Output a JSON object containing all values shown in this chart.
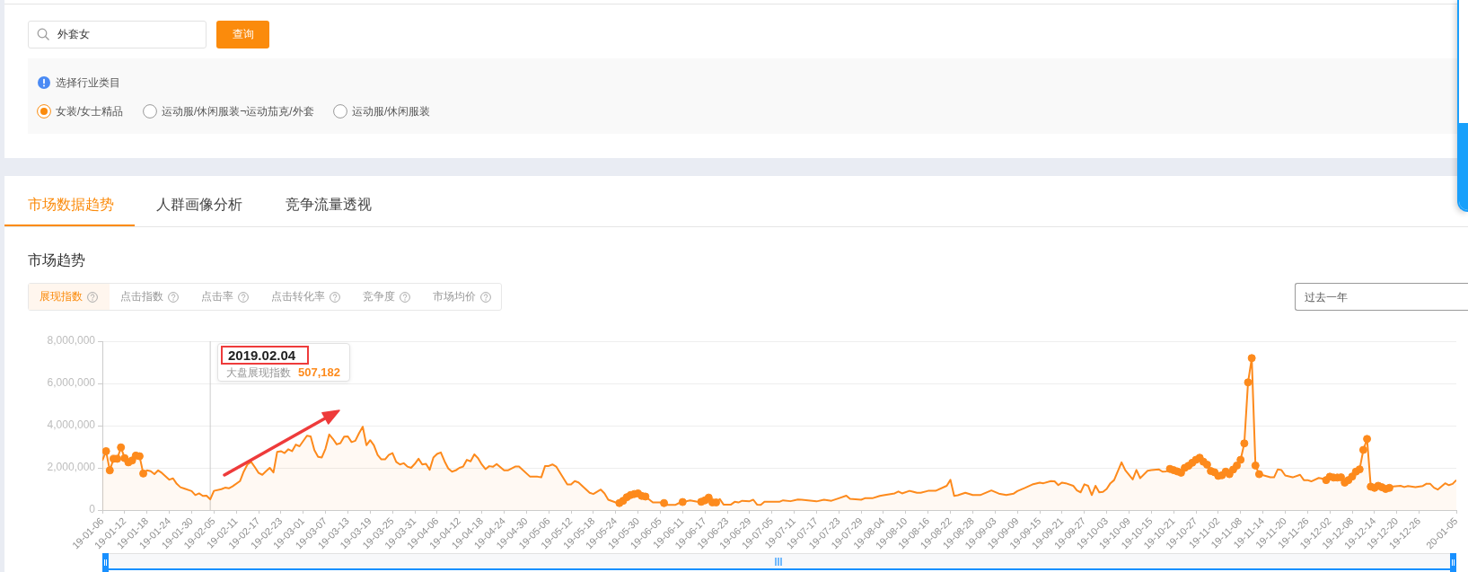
{
  "chart_data": {
    "type": "area",
    "title": "市场趋势",
    "annotations": [
      "外套女",
      "查询",
      "选择行业类目",
      "女装/女士精品",
      "运动服/休闲服装¬运动茄克/外套",
      "运动服/休闲服装",
      "市场数据趋势",
      "人群画像分析",
      "竞争流量透视",
      "展现指数",
      "点击指数",
      "点击率",
      "点击转化率",
      "竞争度",
      "市场均价",
      "过去一年",
      "2019.02.04",
      "大盘展现指数",
      "507,182"
    ],
    "xlim": [
      "2019-01-06",
      "2020-01-05"
    ],
    "xticks": [
      {
        "value": "2019-01-06",
        "label": "19-01-06"
      },
      {
        "value": "2019-01-12",
        "label": "19-01-12"
      },
      {
        "value": "2019-01-18",
        "label": "19-01-18"
      },
      {
        "value": "2019-01-24",
        "label": "19-01-24"
      },
      {
        "value": "2019-01-30",
        "label": "19-01-30"
      },
      {
        "value": "2019-02-05",
        "label": "19-02-05"
      },
      {
        "value": "2019-02-11",
        "label": "19-02-11"
      },
      {
        "value": "2019-02-17",
        "label": "19-02-17"
      },
      {
        "value": "2019-02-23",
        "label": "19-02-23"
      },
      {
        "value": "2019-03-01",
        "label": "19-03-01"
      },
      {
        "value": "2019-03-07",
        "label": "19-03-07"
      },
      {
        "value": "2019-03-13",
        "label": "19-03-13"
      },
      {
        "value": "2019-03-19",
        "label": "19-03-19"
      },
      {
        "value": "2019-03-25",
        "label": "19-03-25"
      },
      {
        "value": "2019-03-31",
        "label": "19-03-31"
      },
      {
        "value": "2019-04-06",
        "label": "19-04-06"
      },
      {
        "value": "2019-04-12",
        "label": "19-04-12"
      },
      {
        "value": "2019-04-18",
        "label": "19-04-18"
      },
      {
        "value": "2019-04-24",
        "label": "19-04-24"
      },
      {
        "value": "2019-04-30",
        "label": "19-04-30"
      },
      {
        "value": "2019-05-06",
        "label": "19-05-06"
      },
      {
        "value": "2019-05-12",
        "label": "19-05-12"
      },
      {
        "value": "2019-05-18",
        "label": "19-05-18"
      },
      {
        "value": "2019-05-24",
        "label": "19-05-24"
      },
      {
        "value": "2019-05-30",
        "label": "19-05-30"
      },
      {
        "value": "2019-06-05",
        "label": "19-06-05"
      },
      {
        "value": "2019-06-11",
        "label": "19-06-11"
      },
      {
        "value": "2019-06-17",
        "label": "19-06-17"
      },
      {
        "value": "2019-06-23",
        "label": "19-06-23"
      },
      {
        "value": "2019-06-29",
        "label": "19-06-29"
      },
      {
        "value": "2019-07-05",
        "label": "19-07-05"
      },
      {
        "value": "2019-07-11",
        "label": "19-07-11"
      },
      {
        "value": "2019-07-17",
        "label": "19-07-17"
      },
      {
        "value": "2019-07-23",
        "label": "19-07-23"
      },
      {
        "value": "2019-07-29",
        "label": "19-07-29"
      },
      {
        "value": "2019-08-04",
        "label": "19-08-04"
      },
      {
        "value": "2019-08-10",
        "label": "19-08-10"
      },
      {
        "value": "2019-08-16",
        "label": "19-08-16"
      },
      {
        "value": "2019-08-22",
        "label": "19-08-22"
      },
      {
        "value": "2019-08-28",
        "label": "19-08-28"
      },
      {
        "value": "2019-09-03",
        "label": "19-09-03"
      },
      {
        "value": "2019-09-09",
        "label": "19-09-09"
      },
      {
        "value": "2019-09-15",
        "label": "19-09-15"
      },
      {
        "value": "2019-09-21",
        "label": "19-09-21"
      },
      {
        "value": "2019-09-27",
        "label": "19-09-27"
      },
      {
        "value": "2019-10-03",
        "label": "19-10-03"
      },
      {
        "value": "2019-10-09",
        "label": "19-10-09"
      },
      {
        "value": "2019-10-15",
        "label": "19-10-15"
      },
      {
        "value": "2019-10-21",
        "label": "19-10-21"
      },
      {
        "value": "2019-10-27",
        "label": "19-10-27"
      },
      {
        "value": "2019-11-02",
        "label": "19-11-02"
      },
      {
        "value": "2019-11-08",
        "label": "19-11-08"
      },
      {
        "value": "2019-11-14",
        "label": "19-11-14"
      },
      {
        "value": "2019-11-20",
        "label": "19-11-20"
      },
      {
        "value": "2019-11-26",
        "label": "19-11-26"
      },
      {
        "value": "2019-12-02",
        "label": "19-12-02"
      },
      {
        "value": "2019-12-08",
        "label": "19-12-08"
      },
      {
        "value": "2019-12-14",
        "label": "19-12-14"
      },
      {
        "value": "2019-12-20",
        "label": "19-12-20"
      },
      {
        "value": "2019-12-26",
        "label": "19-12-26"
      },
      {
        "value": "2020-01-05",
        "label": "20-01-05"
      }
    ],
    "ylim": [
      0,
      8000000
    ],
    "yticks": [
      0,
      {
        "value": 2000000,
        "label": "2,000,000"
      },
      {
        "value": 4000000,
        "label": "4,000,000"
      },
      {
        "value": 6000000,
        "label": "6,000,000"
      },
      {
        "value": 8000000,
        "label": "8,000,000"
      }
    ],
    "grid": "y",
    "ref_lines": [
      {
        "axis": "x",
        "value": "2019-02-04",
        "color": "#cccccc"
      }
    ],
    "series": [
      {
        "color": "#fd8a1c",
        "x": [
          "2019-01-06",
          "2019-01-07",
          "2019-01-08",
          "2019-01-09",
          "2019-01-10",
          "2019-01-11",
          "2019-01-12",
          "2019-01-13",
          "2019-01-14",
          "2019-01-15",
          "2019-01-16",
          "2019-01-17",
          "2019-01-18",
          "2019-01-19",
          "2019-01-20",
          "2019-01-21",
          "2019-01-22",
          "2019-01-24",
          "2019-01-25",
          "2019-01-26",
          "2019-01-27",
          "2019-01-28",
          "2019-01-30",
          "2019-01-31",
          "2019-02-01",
          "2019-02-02",
          "2019-02-03",
          "2019-02-04",
          "2019-02-05",
          "2019-02-07",
          "2019-02-08",
          "2019-02-09",
          "2019-02-10",
          "2019-02-12",
          "2019-02-13",
          "2019-02-14",
          "2019-02-15",
          "2019-02-16",
          "2019-02-17",
          "2019-02-18",
          "2019-02-19",
          "2019-02-20",
          "2019-02-21",
          "2019-02-22",
          "2019-02-23",
          "2019-02-24",
          "2019-02-25",
          "2019-02-26",
          "2019-02-27",
          "2019-02-28",
          "2019-03-02",
          "2019-03-03",
          "2019-03-04",
          "2019-03-05",
          "2019-03-06",
          "2019-03-07",
          "2019-03-08",
          "2019-03-09",
          "2019-03-10",
          "2019-03-11",
          "2019-03-12",
          "2019-03-13",
          "2019-03-14",
          "2019-03-15",
          "2019-03-16",
          "2019-03-17",
          "2019-03-18",
          "2019-03-19",
          "2019-03-20",
          "2019-03-21",
          "2019-03-22",
          "2019-03-23",
          "2019-03-24",
          "2019-03-25",
          "2019-03-26",
          "2019-03-27",
          "2019-03-28",
          "2019-03-29",
          "2019-03-30",
          "2019-03-31",
          "2019-04-01",
          "2019-04-02",
          "2019-04-03",
          "2019-04-04",
          "2019-04-05",
          "2019-04-06",
          "2019-04-07",
          "2019-04-08",
          "2019-04-09",
          "2019-04-10",
          "2019-04-11",
          "2019-04-12",
          "2019-04-13",
          "2019-04-14",
          "2019-04-15",
          "2019-04-16",
          "2019-04-17",
          "2019-04-18",
          "2019-04-19",
          "2019-04-20",
          "2019-04-21",
          "2019-04-22",
          "2019-04-24",
          "2019-04-25",
          "2019-04-27",
          "2019-04-28",
          "2019-05-01",
          "2019-05-03",
          "2019-05-04",
          "2019-05-05",
          "2019-05-06",
          "2019-05-07",
          "2019-05-08",
          "2019-05-11",
          "2019-05-12",
          "2019-05-13",
          "2019-05-14",
          "2019-05-17",
          "2019-05-18",
          "2019-05-20",
          "2019-05-21",
          "2019-05-22",
          "2019-05-24",
          "2019-05-25",
          "2019-05-26",
          "2019-05-27",
          "2019-05-28",
          "2019-05-29",
          "2019-05-30",
          "2019-05-31",
          "2019-06-01",
          "2019-06-03",
          "2019-06-05",
          "2019-06-06",
          "2019-06-07",
          "2019-06-09",
          "2019-06-10",
          "2019-06-11",
          "2019-06-13",
          "2019-06-15",
          "2019-06-16",
          "2019-06-17",
          "2019-06-18",
          "2019-06-19",
          "2019-06-20",
          "2019-06-21",
          "2019-06-22",
          "2019-06-24",
          "2019-06-25",
          "2019-06-26",
          "2019-06-27",
          "2019-06-29",
          "2019-06-30",
          "2019-07-01",
          "2019-07-02",
          "2019-07-03",
          "2019-07-07",
          "2019-07-08",
          "2019-07-10",
          "2019-07-12",
          "2019-07-13",
          "2019-07-17",
          "2019-07-19",
          "2019-07-21",
          "2019-07-23",
          "2019-07-25",
          "2019-07-26",
          "2019-07-29",
          "2019-07-30",
          "2019-08-01",
          "2019-08-03",
          "2019-08-04",
          "2019-08-07",
          "2019-08-08",
          "2019-08-09",
          "2019-08-11",
          "2019-08-13",
          "2019-08-14",
          "2019-08-16",
          "2019-08-18",
          "2019-08-21",
          "2019-08-22",
          "2019-08-23",
          "2019-08-24",
          "2019-08-26",
          "2019-08-28",
          "2019-08-30",
          "2019-09-02",
          "2019-09-04",
          "2019-09-06",
          "2019-09-08",
          "2019-09-09",
          "2019-09-11",
          "2019-09-13",
          "2019-09-15",
          "2019-09-16",
          "2019-09-18",
          "2019-09-19",
          "2019-09-20",
          "2019-09-21",
          "2019-09-22",
          "2019-09-24",
          "2019-09-25",
          "2019-09-26",
          "2019-09-27",
          "2019-09-28",
          "2019-09-29",
          "2019-09-30",
          "2019-10-01",
          "2019-10-02",
          "2019-10-03",
          "2019-10-04",
          "2019-10-05",
          "2019-10-07",
          "2019-10-08",
          "2019-10-10",
          "2019-10-11",
          "2019-10-12",
          "2019-10-14",
          "2019-10-15",
          "2019-10-17",
          "2019-10-18",
          "2019-10-19",
          "2019-10-20",
          "2019-10-21",
          "2019-10-22",
          "2019-10-23",
          "2019-10-24",
          "2019-10-25",
          "2019-10-26",
          "2019-10-27",
          "2019-10-28",
          "2019-10-29",
          "2019-10-30",
          "2019-10-31",
          "2019-11-01",
          "2019-11-02",
          "2019-11-03",
          "2019-11-04",
          "2019-11-05",
          "2019-11-06",
          "2019-11-07",
          "2019-11-08",
          "2019-11-09",
          "2019-11-10",
          "2019-11-11",
          "2019-11-12",
          "2019-11-13",
          "2019-11-16",
          "2019-11-17",
          "2019-11-18",
          "2019-11-19",
          "2019-11-20",
          "2019-11-22",
          "2019-11-24",
          "2019-11-25",
          "2019-11-26",
          "2019-11-27",
          "2019-11-29",
          "2019-11-30",
          "2019-12-01",
          "2019-12-02",
          "2019-12-03",
          "2019-12-04",
          "2019-12-05",
          "2019-12-06",
          "2019-12-07",
          "2019-12-08",
          "2019-12-09",
          "2019-12-10",
          "2019-12-11",
          "2019-12-12",
          "2019-12-13",
          "2019-12-14",
          "2019-12-15",
          "2019-12-16",
          "2019-12-17",
          "2019-12-18",
          "2019-12-19",
          "2019-12-21",
          "2019-12-22",
          "2019-12-23",
          "2019-12-25",
          "2019-12-27",
          "2019-12-28",
          "2019-12-29",
          "2019-12-30",
          "2019-12-31",
          "2020-01-02",
          "2020-01-03",
          "2020-01-04",
          "2020-01-05"
        ],
        "values": [
          2350000,
          2790000,
          1880000,
          2430000,
          2430000,
          2970000,
          2460000,
          2260000,
          2350000,
          2580000,
          2550000,
          1730000,
          1880000,
          1840000,
          1700000,
          1880000,
          1760000,
          1440000,
          1500000,
          1240000,
          1080000,
          1020000,
          900000,
          710000,
          790000,
          670000,
          680000,
          507182,
          910000,
          990000,
          1060000,
          1030000,
          1120000,
          1370000,
          1820000,
          2160000,
          2280000,
          2030000,
          1760000,
          1670000,
          1840000,
          2000000,
          1780000,
          2760000,
          2790000,
          2700000,
          2880000,
          2790000,
          3100000,
          3020000,
          3520000,
          3490000,
          2840000,
          2520000,
          2490000,
          2910000,
          3580000,
          3370000,
          3110000,
          3170000,
          3480000,
          3490000,
          3220000,
          3280000,
          3640000,
          3950000,
          3070000,
          3310000,
          3070000,
          2610000,
          2400000,
          2400000,
          2610000,
          2700000,
          2280000,
          2160000,
          2220000,
          2060000,
          2000000,
          2190000,
          2430000,
          2160000,
          2190000,
          1910000,
          2490000,
          2660000,
          2730000,
          2310000,
          1970000,
          1820000,
          1880000,
          2000000,
          2060000,
          2380000,
          2310000,
          2640000,
          2460000,
          2160000,
          1940000,
          2080000,
          2050000,
          2180000,
          1880000,
          1880000,
          2060000,
          2060000,
          1580000,
          1580000,
          1550000,
          2080000,
          2090000,
          2160000,
          2060000,
          1210000,
          1210000,
          1370000,
          1310000,
          820000,
          760000,
          970000,
          790000,
          490000,
          360000,
          330000,
          440000,
          610000,
          710000,
          760000,
          790000,
          670000,
          640000,
          360000,
          360000,
          330000,
          240000,
          240000,
          330000,
          380000,
          460000,
          390000,
          390000,
          460000,
          590000,
          360000,
          360000,
          520000,
          260000,
          260000,
          390000,
          360000,
          440000,
          420000,
          490000,
          260000,
          240000,
          390000,
          390000,
          460000,
          420000,
          500000,
          490000,
          410000,
          490000,
          440000,
          560000,
          680000,
          530000,
          490000,
          560000,
          560000,
          670000,
          700000,
          790000,
          880000,
          790000,
          910000,
          820000,
          820000,
          910000,
          910000,
          1150000,
          1430000,
          670000,
          700000,
          820000,
          710000,
          710000,
          930000,
          780000,
          710000,
          780000,
          900000,
          1050000,
          1210000,
          1300000,
          1270000,
          1370000,
          1360000,
          1180000,
          1300000,
          1270000,
          1150000,
          930000,
          840000,
          1220000,
          1150000,
          710000,
          1150000,
          840000,
          860000,
          1000000,
          1270000,
          1420000,
          2260000,
          1890000,
          1450000,
          1900000,
          1510000,
          1860000,
          1890000,
          1930000,
          1820000,
          1830000,
          1950000,
          1890000,
          1830000,
          1770000,
          2000000,
          2100000,
          2240000,
          2380000,
          2480000,
          2290000,
          2150000,
          1850000,
          1790000,
          1620000,
          1650000,
          1820000,
          1700000,
          1920000,
          2110000,
          2380000,
          3160000,
          6050000,
          7200000,
          2110000,
          1700000,
          1550000,
          1550000,
          1930000,
          1890000,
          1640000,
          1550000,
          1670000,
          1420000,
          1420000,
          1360000,
          1520000,
          1490000,
          1420000,
          1580000,
          1540000,
          1540000,
          1550000,
          1300000,
          1420000,
          1590000,
          1820000,
          1930000,
          2850000,
          3370000,
          1110000,
          1050000,
          1150000,
          1080000,
          1000000,
          1050000,
          1120000,
          1150000,
          1090000,
          1140000,
          1090000,
          1140000,
          1250000,
          1240000,
          1060000,
          970000,
          1270000,
          1180000,
          1240000,
          1420000
        ]
      },
      {
        "type": "scatter",
        "marker": "circle",
        "color": "#fd8a1c",
        "x": [
          "2019-01-07",
          "2019-01-08",
          "2019-01-09",
          "2019-01-10",
          "2019-01-11",
          "2019-01-12",
          "2019-01-13",
          "2019-01-14",
          "2019-01-15",
          "2019-01-16",
          "2019-01-17",
          "2019-05-25",
          "2019-05-26",
          "2019-05-27",
          "2019-05-28",
          "2019-05-29",
          "2019-05-30",
          "2019-05-31",
          "2019-06-01",
          "2019-06-06",
          "2019-06-11",
          "2019-06-16",
          "2019-06-17",
          "2019-06-18",
          "2019-06-19",
          "2019-06-20",
          "2019-10-20",
          "2019-10-21",
          "2019-10-22",
          "2019-10-23",
          "2019-10-24",
          "2019-10-25",
          "2019-10-26",
          "2019-10-27",
          "2019-10-28",
          "2019-10-29",
          "2019-10-30",
          "2019-10-31",
          "2019-11-01",
          "2019-11-02",
          "2019-11-03",
          "2019-11-04",
          "2019-11-05",
          "2019-11-06",
          "2019-11-07",
          "2019-11-08",
          "2019-11-09",
          "2019-11-10",
          "2019-11-11",
          "2019-11-12",
          "2019-11-13",
          "2019-12-01",
          "2019-12-02",
          "2019-12-03",
          "2019-12-04",
          "2019-12-05",
          "2019-12-06",
          "2019-12-07",
          "2019-12-08",
          "2019-12-09",
          "2019-12-10",
          "2019-12-11",
          "2019-12-12",
          "2019-12-13",
          "2019-12-14",
          "2019-12-15",
          "2019-12-16",
          "2019-12-17",
          "2019-12-18"
        ],
        "values": [
          2790000,
          1880000,
          2430000,
          2430000,
          2970000,
          2460000,
          2260000,
          2350000,
          2580000,
          2550000,
          1730000,
          330000,
          440000,
          610000,
          710000,
          760000,
          790000,
          670000,
          640000,
          330000,
          380000,
          390000,
          460000,
          590000,
          360000,
          360000,
          1950000,
          1890000,
          1830000,
          1770000,
          2000000,
          2100000,
          2240000,
          2380000,
          2480000,
          2290000,
          2150000,
          1850000,
          1790000,
          1620000,
          1650000,
          1820000,
          1700000,
          1920000,
          2110000,
          2380000,
          3160000,
          6050000,
          7200000,
          2110000,
          1700000,
          1420000,
          1580000,
          1540000,
          1540000,
          1550000,
          1300000,
          1420000,
          1590000,
          1820000,
          1930000,
          2850000,
          3370000,
          1110000,
          1050000,
          1150000,
          1080000,
          1000000,
          1050000
        ]
      }
    ]
  }
}
